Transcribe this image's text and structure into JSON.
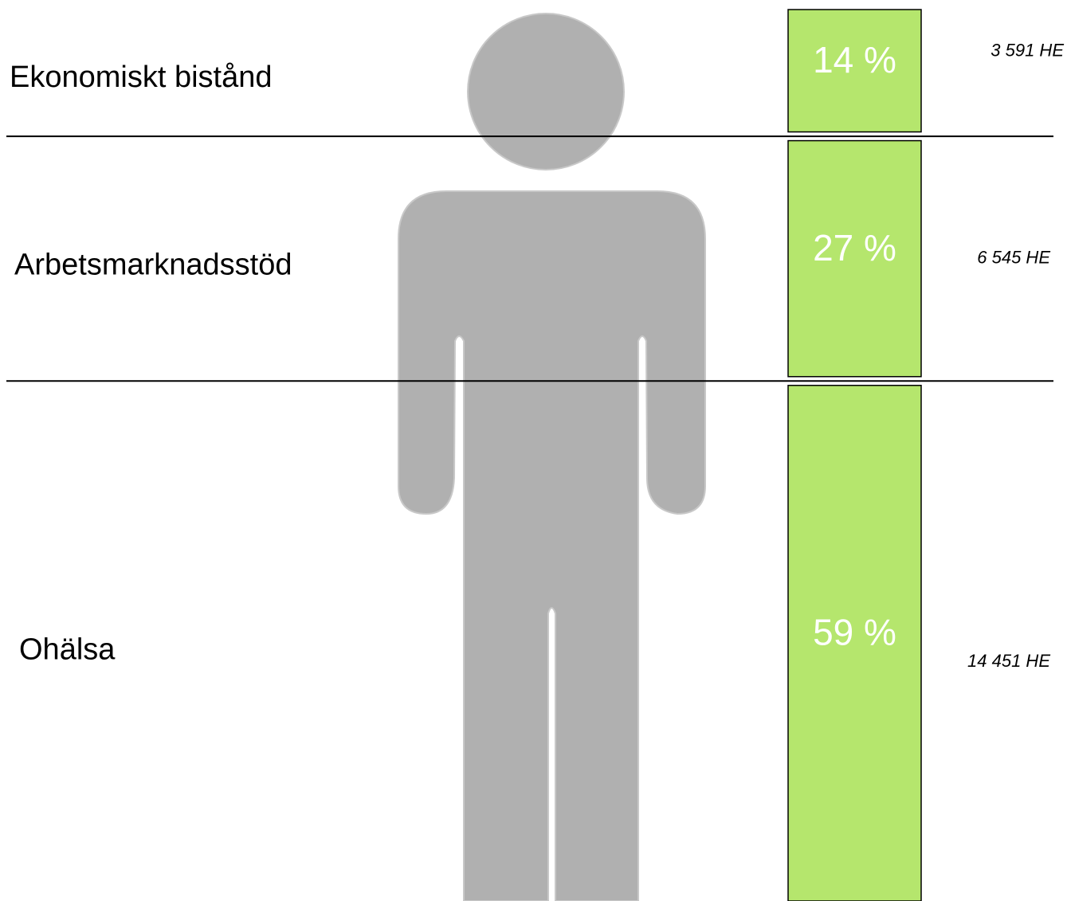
{
  "chart_data": {
    "type": "stacked-bar",
    "categories": [
      "Ekonomiskt bistånd",
      "Arbetsmarknadsstöd",
      "Ohälsa"
    ],
    "values": [
      14,
      27,
      59
    ],
    "value_labels": [
      "14 %",
      "27 %",
      "59 %"
    ],
    "annotations": [
      "3 591 HE",
      "6 545 HE",
      "14 451 HE"
    ],
    "color": "#b5e66d",
    "ylim": [
      0,
      100
    ]
  }
}
